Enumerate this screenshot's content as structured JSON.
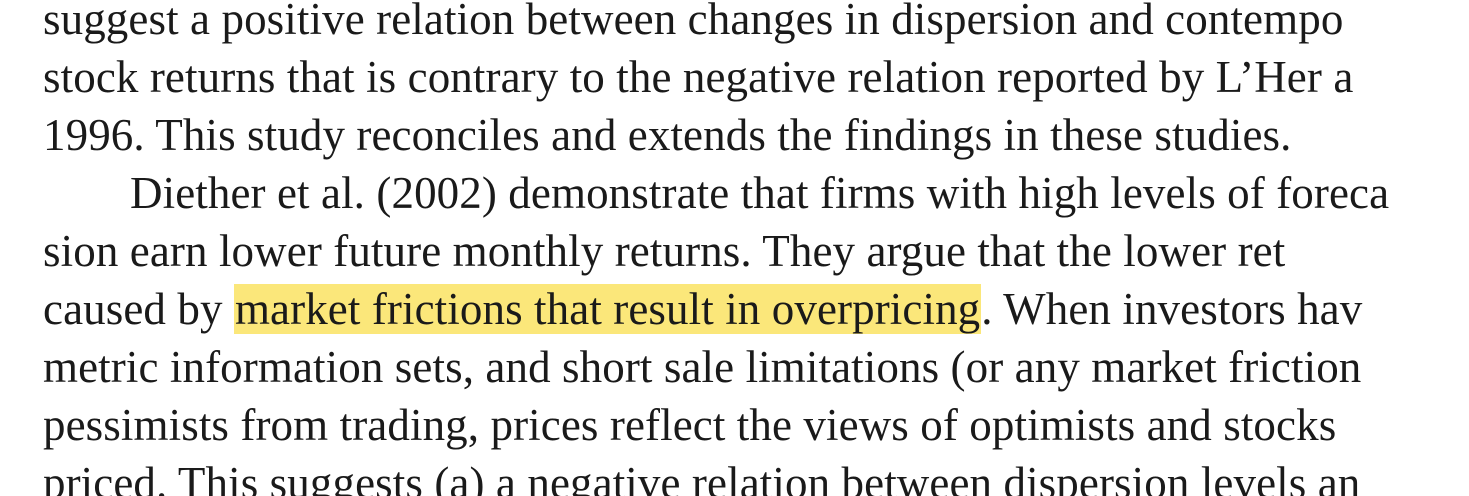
{
  "document": {
    "lines": [
      {
        "text": "suggest a positive relation between changes in dispersion and contempo"
      },
      {
        "text": "stock returns that is contrary to the negative relation reported by L’Her a"
      },
      {
        "text": "1996. This study reconciles and extends the findings in these studies."
      },
      {
        "text": "Diether et al. (2002) demonstrate that firms with high levels of foreca"
      },
      {
        "text": "sion earn lower future monthly returns. They argue that the lower ret"
      },
      {
        "before": "caused by ",
        "highlight": "market frictions that result in overpricing",
        "after": ". When investors hav"
      },
      {
        "text": "metric information sets, and short sale limitations (or any market friction"
      },
      {
        "text": "pessimists from trading, prices reflect the views of optimists and stocks"
      },
      {
        "text": "priced. This suggests (a) a negative relation between dispersion levels an"
      }
    ],
    "highlight_color": "#fbe77a",
    "text_color": "#1a1a1a"
  }
}
